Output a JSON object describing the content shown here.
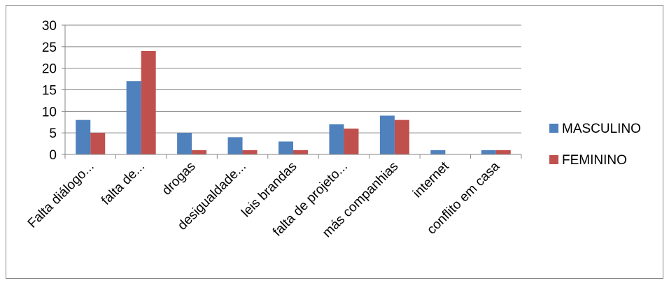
{
  "chart_data": {
    "type": "bar",
    "categories": [
      "Falta diálogo...",
      "falta de...",
      "drogas",
      "desigualdade...",
      "leis brandas",
      "falta de projeto...",
      "más companhias",
      "internet",
      "conflito em casa"
    ],
    "series": [
      {
        "name": "MASCULINO",
        "color": "#4F81BD",
        "values": [
          8,
          17,
          5,
          4,
          3,
          7,
          9,
          1,
          1
        ]
      },
      {
        "name": "FEMININO",
        "color": "#C0504D",
        "values": [
          5,
          24,
          1,
          1,
          1,
          6,
          8,
          0,
          1
        ]
      }
    ],
    "yticks": [
      "0",
      "5",
      "10",
      "15",
      "20",
      "25",
      "30"
    ],
    "ylim": [
      0,
      30
    ],
    "grid": true,
    "legend_position": "right",
    "title": "",
    "xlabel": "",
    "ylabel": ""
  }
}
